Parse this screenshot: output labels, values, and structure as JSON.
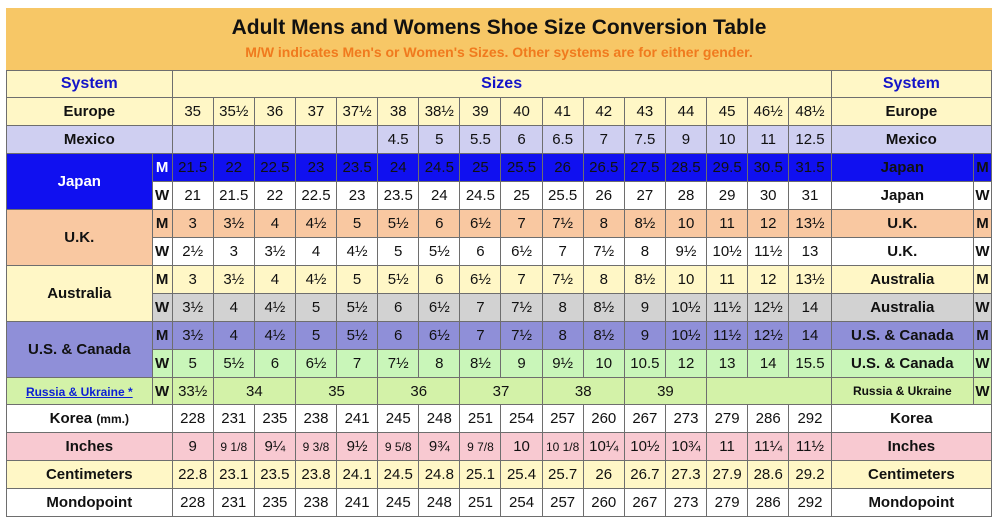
{
  "title": "Adult Mens and Womens Shoe Size Conversion Table",
  "subtitle": "M/W indicates Men's or Women's Sizes. Other systems are for either gender.",
  "header": {
    "left": "System",
    "center": "Sizes",
    "right": "System"
  },
  "rows": [
    {
      "label": "Europe",
      "right": "Europe",
      "mw": "",
      "values": [
        "35",
        "35½",
        "36",
        "37",
        "37½",
        "38",
        "38½",
        "39",
        "40",
        "41",
        "42",
        "43",
        "44",
        "45",
        "46½",
        "48½"
      ]
    },
    {
      "label": "Mexico",
      "right": "Mexico",
      "mw": "",
      "values": [
        "",
        "",
        "",
        "",
        "",
        "4.5",
        "5",
        "5.5",
        "6",
        "6.5",
        "7",
        "7.5",
        "9",
        "10",
        "11",
        "12.5"
      ]
    },
    {
      "label": "Japan",
      "right": "Japan",
      "mw": "M",
      "values": [
        "21.5",
        "22",
        "22.5",
        "23",
        "23.5",
        "24",
        "24.5",
        "25",
        "25.5",
        "26",
        "26.5",
        "27.5",
        "28.5",
        "29.5",
        "30.5",
        "31.5"
      ]
    },
    {
      "label": "",
      "right": "Japan",
      "mw": "W",
      "values": [
        "21",
        "21.5",
        "22",
        "22.5",
        "23",
        "23.5",
        "24",
        "24.5",
        "25",
        "25.5",
        "26",
        "27",
        "28",
        "29",
        "30",
        "31"
      ]
    },
    {
      "label": "U.K.",
      "right": "U.K.",
      "mw": "M",
      "values": [
        "3",
        "3½",
        "4",
        "4½",
        "5",
        "5½",
        "6",
        "6½",
        "7",
        "7½",
        "8",
        "8½",
        "10",
        "11",
        "12",
        "13½"
      ]
    },
    {
      "label": "",
      "right": "U.K.",
      "mw": "W",
      "values": [
        "2½",
        "3",
        "3½",
        "4",
        "4½",
        "5",
        "5½",
        "6",
        "6½",
        "7",
        "7½",
        "8",
        "9½",
        "10½",
        "11½",
        "13"
      ]
    },
    {
      "label": "Australia",
      "right": "Australia",
      "mw": "M",
      "values": [
        "3",
        "3½",
        "4",
        "4½",
        "5",
        "5½",
        "6",
        "6½",
        "7",
        "7½",
        "8",
        "8½",
        "10",
        "11",
        "12",
        "13½"
      ]
    },
    {
      "label": "",
      "right": "Australia",
      "mw": "W",
      "values": [
        "3½",
        "4",
        "4½",
        "5",
        "5½",
        "6",
        "6½",
        "7",
        "7½",
        "8",
        "8½",
        "9",
        "10½",
        "11½",
        "12½",
        "14"
      ]
    },
    {
      "label": "U.S. & Canada",
      "right": "U.S. & Canada",
      "mw": "M",
      "values": [
        "3½",
        "4",
        "4½",
        "5",
        "5½",
        "6",
        "6½",
        "7",
        "7½",
        "8",
        "8½",
        "9",
        "10½",
        "11½",
        "12½",
        "14"
      ]
    },
    {
      "label": "",
      "right": "U.S. & Canada",
      "mw": "W",
      "values": [
        "5",
        "5½",
        "6",
        "6½",
        "7",
        "7½",
        "8",
        "8½",
        "9",
        "9½",
        "10",
        "10.5",
        "12",
        "13",
        "14",
        "15.5"
      ]
    },
    {
      "label": "Russia & Ukraine *",
      "right": "Russia & Ukraine",
      "mw": "W",
      "values": [
        "33½",
        "34",
        "35",
        "36",
        "37",
        "38",
        "39"
      ]
    },
    {
      "label": "Korea",
      "label_unit": "(mm.)",
      "right": "Korea",
      "mw": "",
      "values": [
        "228",
        "231",
        "235",
        "238",
        "241",
        "245",
        "248",
        "251",
        "254",
        "257",
        "260",
        "267",
        "273",
        "279",
        "286",
        "292"
      ]
    },
    {
      "label": "Inches",
      "right": "Inches",
      "mw": "",
      "values": [
        "9",
        "9 1/8",
        "9¼",
        "9 3/8",
        "9½",
        "9 5/8",
        "9¾",
        "9 7/8",
        "10",
        "10 1/8",
        "10¼",
        "10½",
        "10¾",
        "11",
        "11¼",
        "11½"
      ]
    },
    {
      "label": "Centimeters",
      "right": "Centimeters",
      "mw": "",
      "values": [
        "22.8",
        "23.1",
        "23.5",
        "23.8",
        "24.1",
        "24.5",
        "24.8",
        "25.1",
        "25.4",
        "25.7",
        "26",
        "26.7",
        "27.3",
        "27.9",
        "28.6",
        "29.2"
      ]
    },
    {
      "label": "Mondopoint",
      "right": "Mondopoint",
      "mw": "",
      "values": [
        "228",
        "231",
        "235",
        "238",
        "241",
        "245",
        "248",
        "251",
        "254",
        "257",
        "260",
        "267",
        "273",
        "279",
        "286",
        "292"
      ]
    }
  ],
  "colors": {
    "banner": "#f7c766",
    "subtitle": "#f07a1e",
    "header_text": "#1414c8",
    "japan_men": "#1010f0",
    "uk_men": "#f9c8a1",
    "australia_women": "#d2d2d2",
    "us_men": "#8f8fd8",
    "us_women": "#c9f6b9",
    "russia": "#d3f2a8",
    "inches": "#f8c9d1"
  }
}
